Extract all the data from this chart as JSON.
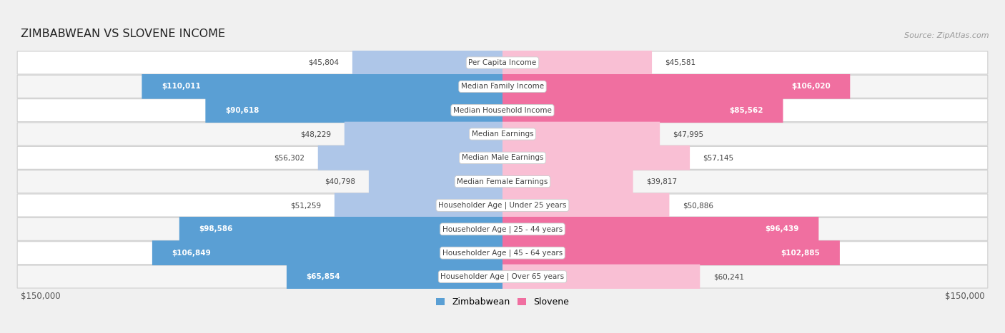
{
  "title": "ZIMBABWEAN VS SLOVENE INCOME",
  "source": "Source: ZipAtlas.com",
  "categories": [
    "Per Capita Income",
    "Median Family Income",
    "Median Household Income",
    "Median Earnings",
    "Median Male Earnings",
    "Median Female Earnings",
    "Householder Age | Under 25 years",
    "Householder Age | 25 - 44 years",
    "Householder Age | 45 - 64 years",
    "Householder Age | Over 65 years"
  ],
  "zimbabwean": [
    45804,
    110011,
    90618,
    48229,
    56302,
    40798,
    51259,
    98586,
    106849,
    65854
  ],
  "slovene": [
    45581,
    106020,
    85562,
    47995,
    57145,
    39817,
    50886,
    96439,
    102885,
    60241
  ],
  "max_val": 150000,
  "zim_color_light": "#aec6e8",
  "zim_color_dark": "#5a9fd4",
  "slo_color_light": "#f9bfd4",
  "slo_color_dark": "#f06fa0",
  "zim_threshold": 65000,
  "slo_threshold": 65000,
  "background_color": "#f0f0f0",
  "row_bg_even": "#ffffff",
  "row_bg_odd": "#f5f5f5",
  "row_border": "#d0d0d0",
  "legend_zim": "Zimbabwean",
  "legend_slo": "Slovene"
}
